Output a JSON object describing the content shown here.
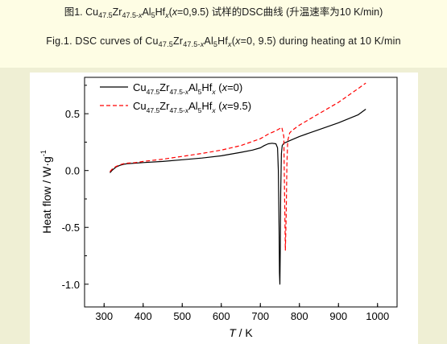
{
  "caption_cn": {
    "prefix": "图1. Cu",
    "cu_sub": "47.5",
    "zr": "Zr",
    "zr_sub": "47.5-",
    "zr_sub_x": "x",
    "al": "Al",
    "al_sub": "5",
    "hf": "Hf",
    "hf_sub_x": "x",
    "open": "(",
    "x": "x",
    "values": "=0,9.5) 试样的DSC曲线 (升温速率为10 K/min)"
  },
  "caption_en": {
    "prefix": "Fig.1. DSC curves of Cu",
    "cu_sub": "47.5",
    "zr": "Zr",
    "zr_sub": "47.5-",
    "zr_sub_x": "x",
    "al": "Al",
    "al_sub": "5",
    "hf": "Hf",
    "hf_sub_x": "x",
    "open": "(",
    "x": "x",
    "values": "=0, 9.5) during heating at 10 K/min"
  },
  "chart_data": {
    "type": "line",
    "xlabel_italic": "T",
    "xlabel_rest": " / K",
    "ylabel_main": "Heat flow / W·g",
    "ylabel_sup": "-1",
    "xlim": [
      250,
      1050
    ],
    "ylim": [
      -1.2,
      0.82
    ],
    "x_ticks": [
      300,
      400,
      500,
      600,
      700,
      800,
      900,
      1000
    ],
    "y_ticks": [
      -1.0,
      -0.5,
      0.0,
      0.5
    ],
    "y_tick_labels": [
      "-1.0",
      "-0.5",
      "0.0",
      "0.5"
    ],
    "legend_position": "top-left",
    "series": [
      {
        "legend": {
          "cu": "Cu",
          "cu_sub": "47.5",
          "zr": "Zr",
          "zr_sub": "47.5-",
          "zr_sub_x": "x",
          "al": "Al",
          "al_sub": "5",
          "hf": "Hf",
          "hf_sub": "x",
          "open": " (",
          "x": "x",
          "value": "=0)"
        },
        "color": "#000000",
        "dash": "solid",
        "x": [
          315,
          320,
          330,
          340,
          350,
          360,
          380,
          400,
          450,
          500,
          550,
          600,
          650,
          680,
          700,
          710,
          720,
          730,
          740,
          744,
          746,
          748,
          749,
          750,
          751,
          752,
          754,
          756,
          758,
          760,
          780,
          800,
          850,
          900,
          950,
          970
        ],
        "y": [
          -0.02,
          0.0,
          0.03,
          0.045,
          0.055,
          0.06,
          0.065,
          0.07,
          0.08,
          0.095,
          0.11,
          0.13,
          0.16,
          0.18,
          0.2,
          0.22,
          0.235,
          0.24,
          0.235,
          0.2,
          0.0,
          -0.5,
          -0.9,
          -1.0,
          -0.7,
          -0.2,
          0.15,
          0.22,
          0.23,
          0.24,
          0.27,
          0.3,
          0.36,
          0.42,
          0.49,
          0.54
        ]
      },
      {
        "legend": {
          "cu": "Cu",
          "cu_sub": "47.5",
          "zr": "Zr",
          "zr_sub": "47.5-",
          "zr_sub_x": "x",
          "al": "Al",
          "al_sub": "5",
          "hf": "Hf",
          "hf_sub": "x",
          "open": " (",
          "x": "x",
          "value": "=9.5)"
        },
        "color": "#ff0000",
        "dash": "dashed",
        "x": [
          315,
          320,
          330,
          340,
          350,
          360,
          380,
          400,
          450,
          500,
          550,
          600,
          650,
          700,
          720,
          740,
          750,
          755,
          760,
          762,
          764,
          766,
          768,
          770,
          775,
          780,
          800,
          850,
          900,
          950,
          970
        ],
        "y": [
          -0.01,
          0.01,
          0.035,
          0.05,
          0.06,
          0.065,
          0.07,
          0.08,
          0.1,
          0.125,
          0.15,
          0.18,
          0.22,
          0.28,
          0.32,
          0.35,
          0.37,
          0.38,
          0.3,
          -0.2,
          -0.7,
          -0.4,
          0.05,
          0.26,
          0.33,
          0.35,
          0.4,
          0.5,
          0.6,
          0.72,
          0.77
        ]
      }
    ]
  }
}
